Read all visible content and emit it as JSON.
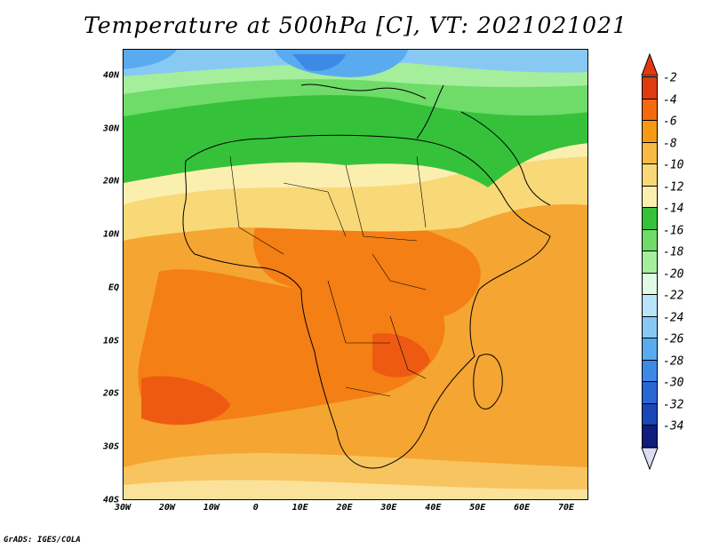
{
  "title": "Temperature at 500hPa [C], VT: 2021021021",
  "credit": "GrADS: IGES/COLA",
  "map": {
    "x_ticks": [
      "30W",
      "20W",
      "10W",
      "0",
      "10E",
      "20E",
      "30E",
      "40E",
      "50E",
      "60E",
      "70E"
    ],
    "y_ticks": [
      "40N",
      "30N",
      "20N",
      "10N",
      "EQ",
      "10S",
      "20S",
      "30S",
      "40S"
    ],
    "lon_range": [
      -30,
      75
    ],
    "lat_range": [
      -40,
      45
    ]
  },
  "colorbar": {
    "labels": [
      "-2",
      "-4",
      "-6",
      "-8",
      "-10",
      "-12",
      "-14",
      "-16",
      "-18",
      "-20",
      "-22",
      "-24",
      "-26",
      "-28",
      "-30",
      "-32",
      "-34"
    ],
    "colors": [
      "#e03a10",
      "#f46a0c",
      "#f59a12",
      "#f7ba45",
      "#f9d878",
      "#fbefb0",
      "#35c23a",
      "#6fdb69",
      "#a4ee9c",
      "#dffbe6",
      "#b9e4fa",
      "#88c9f4",
      "#5aaaf0",
      "#3d89e6",
      "#2866d3",
      "#1a47b7",
      "#0f1e7c"
    ]
  }
}
